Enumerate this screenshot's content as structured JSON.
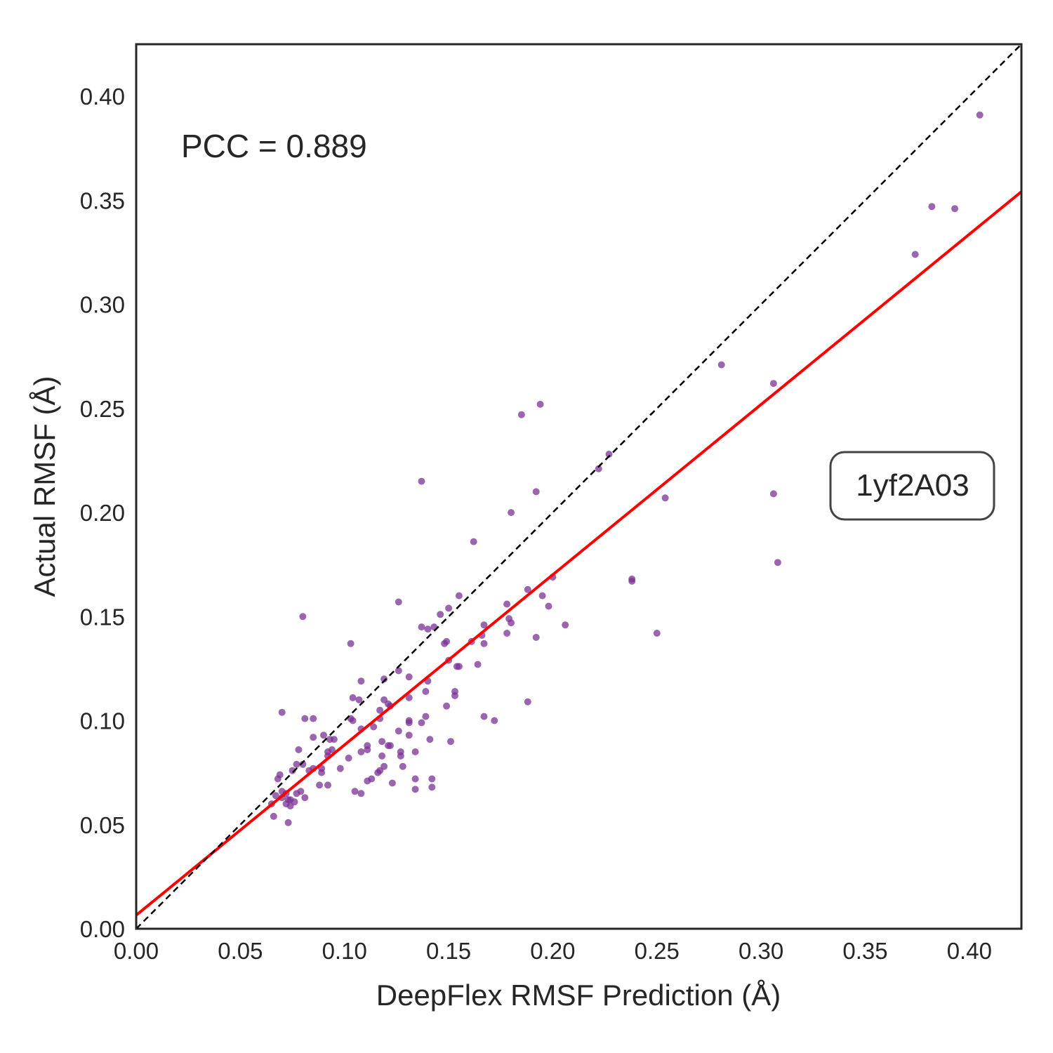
{
  "chart_data": {
    "type": "scatter",
    "xlabel": "DeepFlex RMSF Prediction (Å)",
    "ylabel": "Actual RMSF (Å)",
    "xlim": [
      0,
      0.425
    ],
    "ylim": [
      0,
      0.425
    ],
    "xticks": [
      "0.00",
      "0.05",
      "0.10",
      "0.15",
      "0.20",
      "0.25",
      "0.30",
      "0.35",
      "0.40"
    ],
    "yticks": [
      "0.00",
      "0.05",
      "0.10",
      "0.15",
      "0.20",
      "0.25",
      "0.30",
      "0.35",
      "0.40"
    ],
    "grid": false,
    "annotation_pcc": "PCC = 0.889",
    "annotation_id": "1yf2A03",
    "identity_line": {
      "style": "dashed",
      "color": "#000000",
      "from": [
        0,
        0
      ],
      "to": [
        0.425,
        0.425
      ]
    },
    "fit_line": {
      "color": "#ff0000",
      "slope": 0.818,
      "intercept": 0.0065
    },
    "point_color": "#7b3294",
    "points": [
      [
        0.405,
        0.391
      ],
      [
        0.382,
        0.347
      ],
      [
        0.393,
        0.346
      ],
      [
        0.374,
        0.324
      ],
      [
        0.281,
        0.271
      ],
      [
        0.306,
        0.262
      ],
      [
        0.306,
        0.209
      ],
      [
        0.308,
        0.176
      ],
      [
        0.254,
        0.207
      ],
      [
        0.25,
        0.142
      ],
      [
        0.238,
        0.167
      ],
      [
        0.238,
        0.168
      ],
      [
        0.227,
        0.228
      ],
      [
        0.222,
        0.221
      ],
      [
        0.194,
        0.252
      ],
      [
        0.185,
        0.247
      ],
      [
        0.192,
        0.21
      ],
      [
        0.18,
        0.2
      ],
      [
        0.162,
        0.186
      ],
      [
        0.2,
        0.169
      ],
      [
        0.195,
        0.16
      ],
      [
        0.198,
        0.155
      ],
      [
        0.188,
        0.163
      ],
      [
        0.178,
        0.156
      ],
      [
        0.179,
        0.149
      ],
      [
        0.18,
        0.147
      ],
      [
        0.178,
        0.142
      ],
      [
        0.192,
        0.14
      ],
      [
        0.206,
        0.146
      ],
      [
        0.188,
        0.109
      ],
      [
        0.172,
        0.1
      ],
      [
        0.167,
        0.102
      ],
      [
        0.167,
        0.146
      ],
      [
        0.166,
        0.141
      ],
      [
        0.167,
        0.137
      ],
      [
        0.161,
        0.138
      ],
      [
        0.164,
        0.127
      ],
      [
        0.155,
        0.16
      ],
      [
        0.15,
        0.154
      ],
      [
        0.146,
        0.151
      ],
      [
        0.155,
        0.126
      ],
      [
        0.154,
        0.126
      ],
      [
        0.15,
        0.129
      ],
      [
        0.149,
        0.138
      ],
      [
        0.148,
        0.137
      ],
      [
        0.143,
        0.145
      ],
      [
        0.14,
        0.144
      ],
      [
        0.137,
        0.145
      ],
      [
        0.137,
        0.215
      ],
      [
        0.126,
        0.157
      ],
      [
        0.08,
        0.15
      ],
      [
        0.103,
        0.137
      ],
      [
        0.153,
        0.114
      ],
      [
        0.153,
        0.112
      ],
      [
        0.149,
        0.107
      ],
      [
        0.139,
        0.114
      ],
      [
        0.14,
        0.119
      ],
      [
        0.131,
        0.121
      ],
      [
        0.126,
        0.124
      ],
      [
        0.119,
        0.12
      ],
      [
        0.121,
        0.108
      ],
      [
        0.119,
        0.11
      ],
      [
        0.122,
        0.107
      ],
      [
        0.131,
        0.111
      ],
      [
        0.108,
        0.119
      ],
      [
        0.104,
        0.111
      ],
      [
        0.107,
        0.11
      ],
      [
        0.117,
        0.105
      ],
      [
        0.137,
        0.099
      ],
      [
        0.131,
        0.1
      ],
      [
        0.131,
        0.099
      ],
      [
        0.139,
        0.102
      ],
      [
        0.117,
        0.101
      ],
      [
        0.114,
        0.097
      ],
      [
        0.108,
        0.096
      ],
      [
        0.103,
        0.101
      ],
      [
        0.104,
        0.1
      ],
      [
        0.131,
        0.093
      ],
      [
        0.126,
        0.095
      ],
      [
        0.118,
        0.09
      ],
      [
        0.121,
        0.088
      ],
      [
        0.122,
        0.088
      ],
      [
        0.111,
        0.088
      ],
      [
        0.111,
        0.086
      ],
      [
        0.108,
        0.085
      ],
      [
        0.102,
        0.082
      ],
      [
        0.098,
        0.077
      ],
      [
        0.095,
        0.091
      ],
      [
        0.093,
        0.091
      ],
      [
        0.09,
        0.093
      ],
      [
        0.085,
        0.092
      ],
      [
        0.094,
        0.086
      ],
      [
        0.092,
        0.085
      ],
      [
        0.092,
        0.083
      ],
      [
        0.089,
        0.077
      ],
      [
        0.089,
        0.075
      ],
      [
        0.085,
        0.077
      ],
      [
        0.083,
        0.076
      ],
      [
        0.08,
        0.079
      ],
      [
        0.078,
        0.086
      ],
      [
        0.081,
        0.101
      ],
      [
        0.085,
        0.101
      ],
      [
        0.07,
        0.104
      ],
      [
        0.151,
        0.09
      ],
      [
        0.141,
        0.091
      ],
      [
        0.134,
        0.085
      ],
      [
        0.127,
        0.085
      ],
      [
        0.127,
        0.083
      ],
      [
        0.118,
        0.083
      ],
      [
        0.119,
        0.078
      ],
      [
        0.117,
        0.076
      ],
      [
        0.116,
        0.075
      ],
      [
        0.128,
        0.078
      ],
      [
        0.113,
        0.072
      ],
      [
        0.111,
        0.071
      ],
      [
        0.123,
        0.07
      ],
      [
        0.134,
        0.072
      ],
      [
        0.142,
        0.072
      ],
      [
        0.142,
        0.068
      ],
      [
        0.134,
        0.067
      ],
      [
        0.105,
        0.066
      ],
      [
        0.108,
        0.065
      ],
      [
        0.092,
        0.069
      ],
      [
        0.088,
        0.069
      ],
      [
        0.079,
        0.066
      ],
      [
        0.081,
        0.063
      ],
      [
        0.077,
        0.065
      ],
      [
        0.076,
        0.061
      ],
      [
        0.074,
        0.059
      ],
      [
        0.073,
        0.062
      ],
      [
        0.072,
        0.06
      ],
      [
        0.07,
        0.066
      ],
      [
        0.068,
        0.072
      ],
      [
        0.069,
        0.074
      ],
      [
        0.067,
        0.064
      ],
      [
        0.065,
        0.06
      ],
      [
        0.066,
        0.054
      ],
      [
        0.073,
        0.051
      ],
      [
        0.075,
        0.076
      ],
      [
        0.077,
        0.079
      ],
      [
        0.07,
        0.063
      ],
      [
        0.074,
        0.062
      ],
      [
        0.072,
        0.065
      ]
    ]
  }
}
